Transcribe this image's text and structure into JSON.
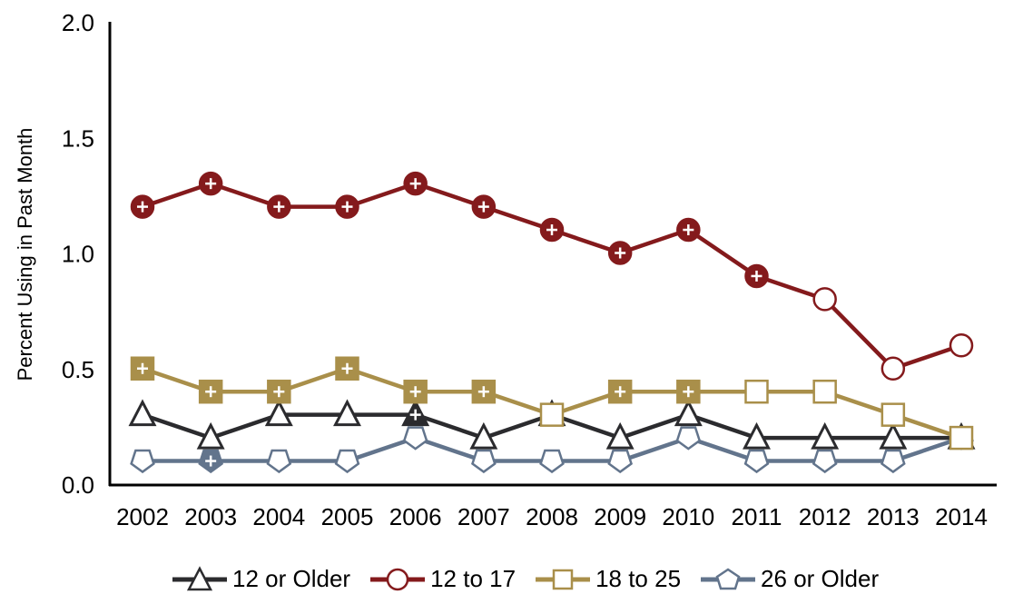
{
  "chart_data": {
    "type": "line",
    "title": "",
    "xlabel": "",
    "ylabel": "Percent Using in Past Month",
    "ylim": [
      0,
      2.0
    ],
    "yticks": [
      "0.0",
      "0.5",
      "1.0",
      "1.5",
      "2.0"
    ],
    "grid": false,
    "legend_position": "bottom",
    "categories": [
      "2002",
      "2003",
      "2004",
      "2005",
      "2006",
      "2007",
      "2008",
      "2009",
      "2010",
      "2011",
      "2012",
      "2013",
      "2014"
    ],
    "series": [
      {
        "name": "12 or Older",
        "color": "#2b2b2e",
        "marker": "triangle",
        "values": [
          0.3,
          0.2,
          0.3,
          0.3,
          0.3,
          0.2,
          0.3,
          0.2,
          0.3,
          0.2,
          0.2,
          0.2,
          0.2
        ],
        "significant": [
          false,
          false,
          false,
          false,
          true,
          false,
          false,
          false,
          false,
          false,
          false,
          false,
          false
        ]
      },
      {
        "name": "12 to 17",
        "color": "#841a1c",
        "marker": "circle",
        "values": [
          1.2,
          1.3,
          1.2,
          1.2,
          1.3,
          1.2,
          1.1,
          1.0,
          1.1,
          0.9,
          0.8,
          0.5,
          0.6
        ],
        "significant": [
          true,
          true,
          true,
          true,
          true,
          true,
          true,
          true,
          true,
          true,
          false,
          false,
          false
        ]
      },
      {
        "name": "18 to 25",
        "color": "#a98f4a",
        "marker": "square",
        "values": [
          0.5,
          0.4,
          0.4,
          0.5,
          0.4,
          0.4,
          0.3,
          0.4,
          0.4,
          0.4,
          0.4,
          0.3,
          0.2
        ],
        "significant": [
          true,
          true,
          true,
          true,
          true,
          true,
          false,
          true,
          true,
          false,
          false,
          false,
          false
        ]
      },
      {
        "name": "26 or Older",
        "color": "#62748c",
        "marker": "pentagon",
        "values": [
          0.1,
          0.1,
          0.1,
          0.1,
          0.2,
          0.1,
          0.1,
          0.1,
          0.2,
          0.1,
          0.1,
          0.1,
          0.2
        ],
        "significant": [
          false,
          true,
          false,
          false,
          false,
          false,
          false,
          false,
          false,
          false,
          false,
          false,
          false
        ]
      }
    ]
  },
  "legend": {
    "items": [
      "12 or Older",
      "12 to 17",
      "18 to 25",
      "26 or Older"
    ]
  }
}
